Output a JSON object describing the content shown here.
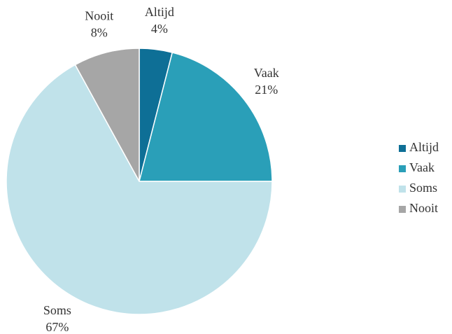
{
  "chart_data": {
    "type": "pie",
    "categories": [
      "Altijd",
      "Vaak",
      "Soms",
      "Nooit"
    ],
    "values": [
      4,
      21,
      67,
      8
    ],
    "value_labels": [
      "4%",
      "21%",
      "67%",
      "8%"
    ],
    "colors": [
      "#0e6f96",
      "#2a9fb8",
      "#c0e2ea",
      "#a6a6a6"
    ],
    "legend": "right"
  }
}
